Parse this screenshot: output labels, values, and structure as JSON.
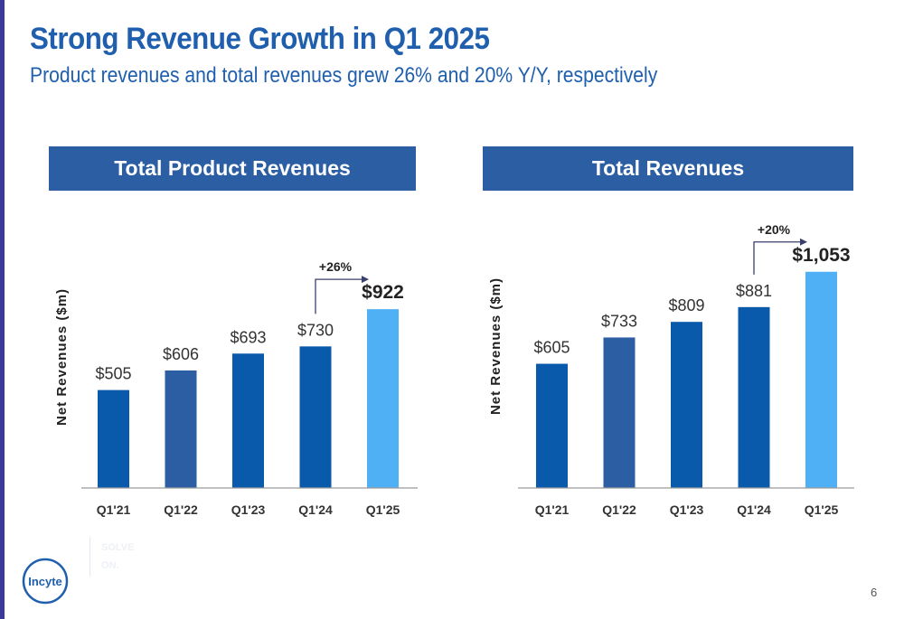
{
  "slide": {
    "title": "Strong Revenue Growth in Q1 2025",
    "subtitle": "Product revenues and total revenues grew 26% and 20% Y/Y, respectively",
    "page_number": "6",
    "logo_text": "Incyte",
    "faint_text": [
      "SOLVE",
      "ON."
    ]
  },
  "colors": {
    "title": "#1f5fae",
    "header_bg": "#2b5ea3",
    "bar_dark_blue": "#0a5aac",
    "bar_mid_blue": "#2b5ea3",
    "bar_light_blue": "#4fb0f5",
    "arrow": "#3a3f6e"
  },
  "chart_data": [
    {
      "type": "bar",
      "title": "Total Product Revenues",
      "ylabel": "Net Revenues ($m)",
      "categories": [
        "Q1'21",
        "Q1'22",
        "Q1'23",
        "Q1'24",
        "Q1'25"
      ],
      "values": [
        505,
        606,
        693,
        730,
        922
      ],
      "data_labels": [
        "$505",
        "$606",
        "$693",
        "$730",
        "$922"
      ],
      "bar_colors": [
        "#0a5aac",
        "#2b5ea3",
        "#0a5aac",
        "#0a5aac",
        "#4fb0f5"
      ],
      "ylim": [
        0,
        1060
      ],
      "grid": false,
      "growth_annotation": "+26%"
    },
    {
      "type": "bar",
      "title": "Total Revenues",
      "ylabel": "Net Revenues ($m)",
      "categories": [
        "Q1'21",
        "Q1'22",
        "Q1'23",
        "Q1'24",
        "Q1'25"
      ],
      "values": [
        605,
        733,
        809,
        881,
        1053
      ],
      "data_labels": [
        "$605",
        "$733",
        "$809",
        "$881",
        "$1,053"
      ],
      "bar_colors": [
        "#0a5aac",
        "#2b5ea3",
        "#0a5aac",
        "#0a5aac",
        "#4fb0f5"
      ],
      "ylim": [
        0,
        1060
      ],
      "grid": false,
      "growth_annotation": "+20%"
    }
  ]
}
